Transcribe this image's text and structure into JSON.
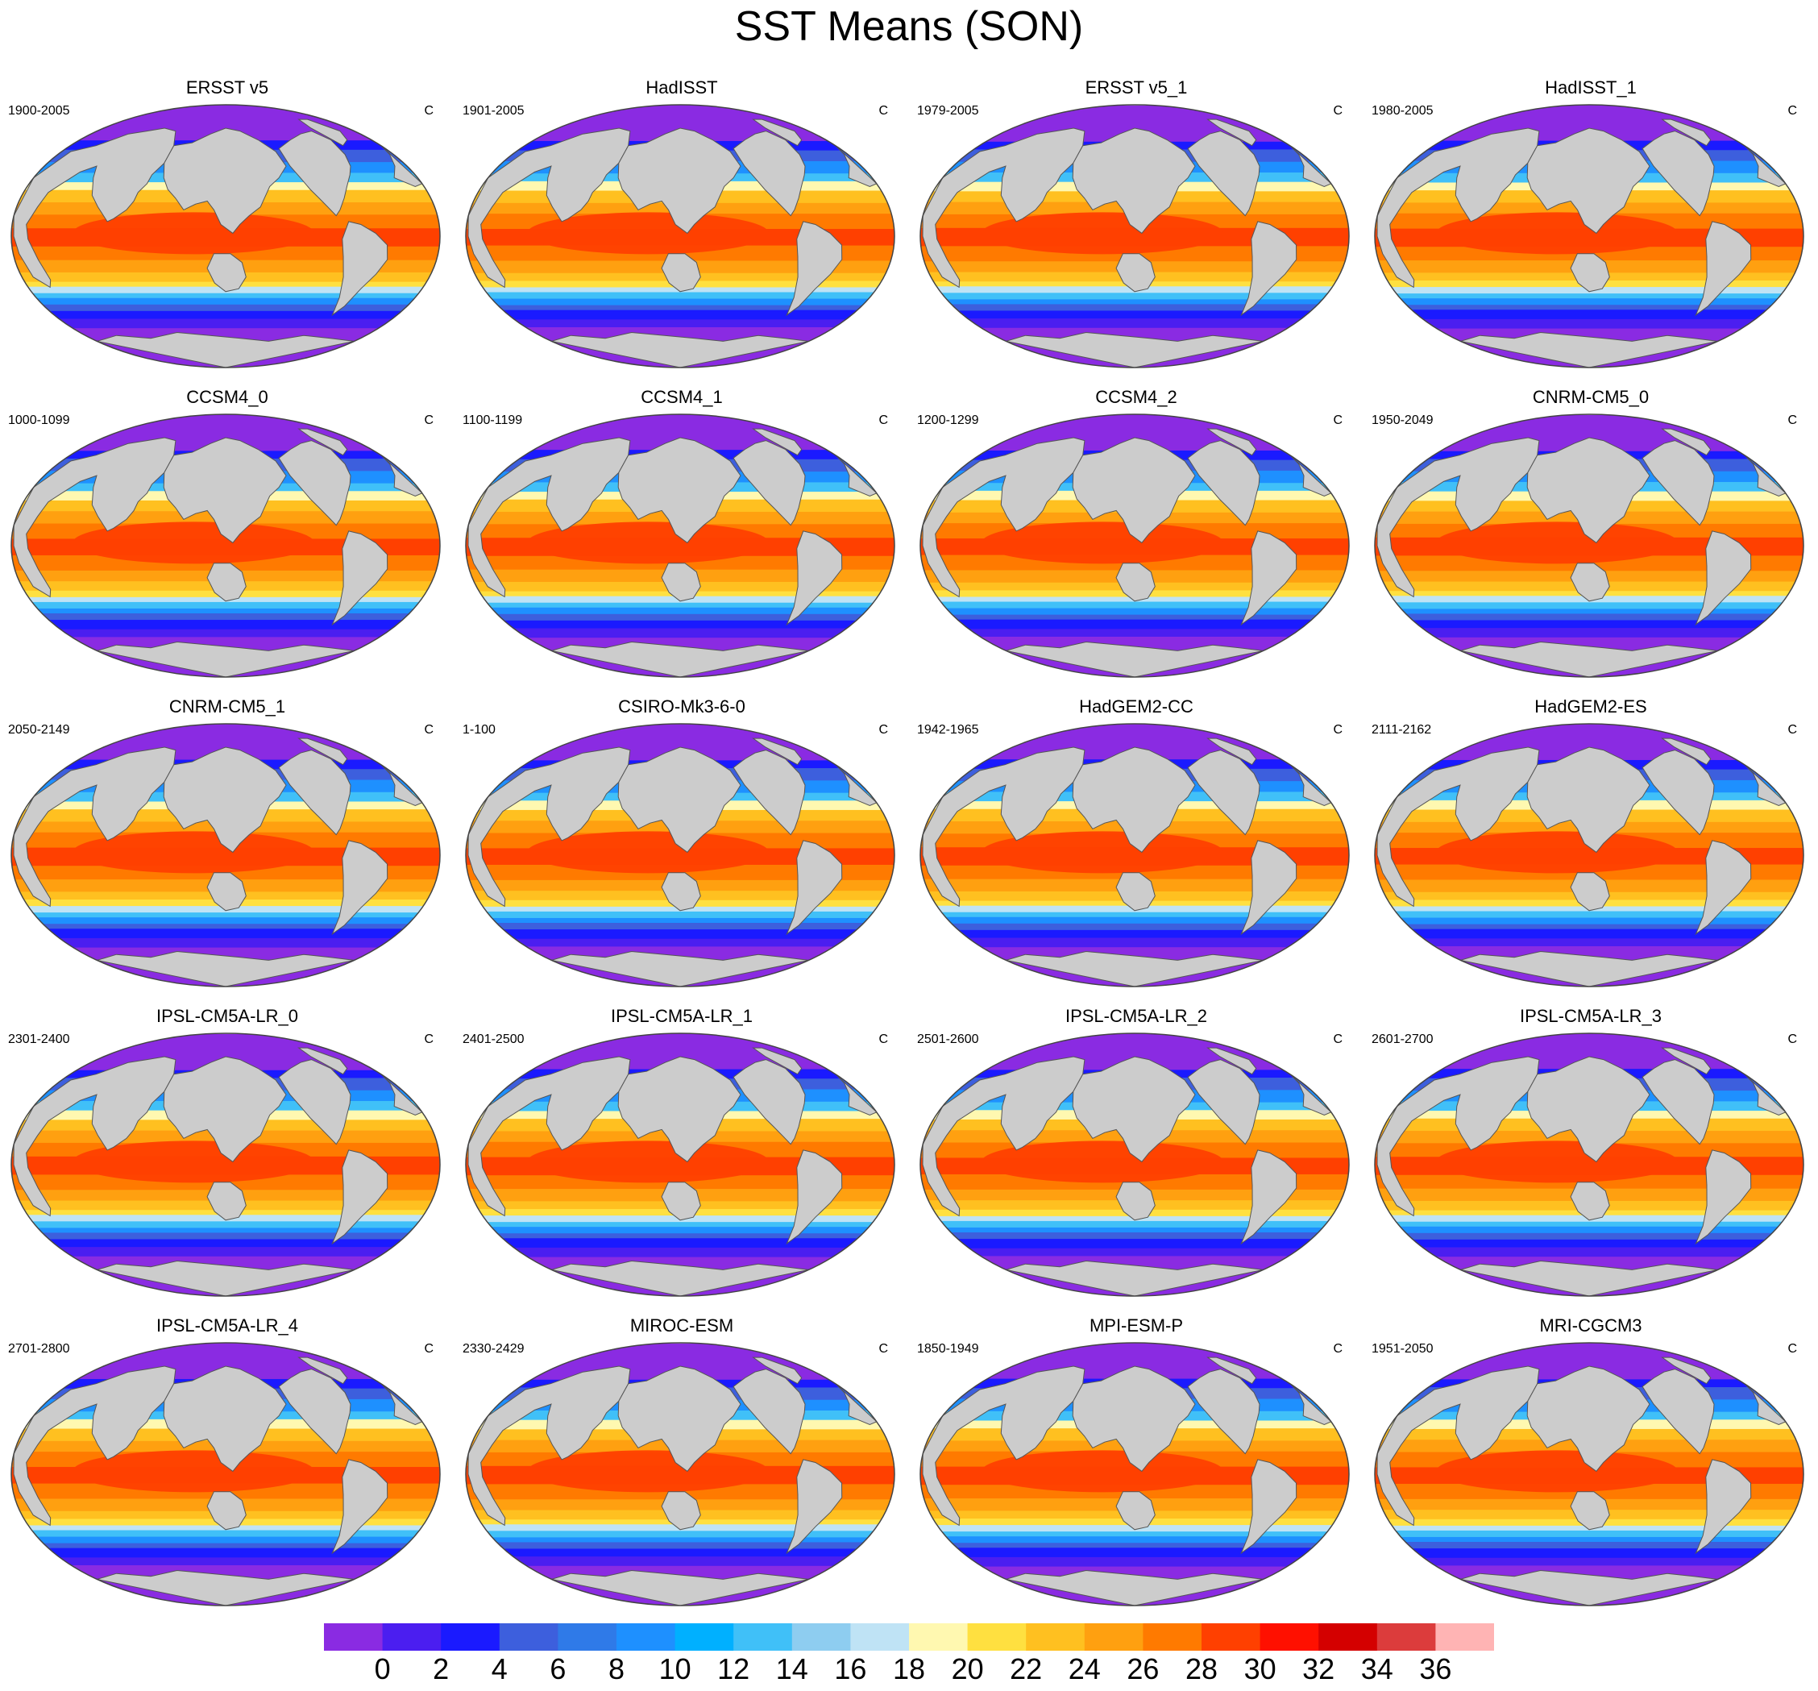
{
  "title": "SST Means (SON)",
  "units": "C",
  "panels": [
    {
      "name": "ERSST v5",
      "period": "1900-2005"
    },
    {
      "name": "HadISST",
      "period": "1901-2005"
    },
    {
      "name": "ERSST v5_1",
      "period": "1979-2005"
    },
    {
      "name": "HadISST_1",
      "period": "1980-2005"
    },
    {
      "name": "CCSM4_0",
      "period": "1000-1099"
    },
    {
      "name": "CCSM4_1",
      "period": "1100-1199"
    },
    {
      "name": "CCSM4_2",
      "period": "1200-1299"
    },
    {
      "name": "CNRM-CM5_0",
      "period": "1950-2049"
    },
    {
      "name": "CNRM-CM5_1",
      "period": "2050-2149"
    },
    {
      "name": "CSIRO-Mk3-6-0",
      "period": "1-100"
    },
    {
      "name": "HadGEM2-CC",
      "period": "1942-1965"
    },
    {
      "name": "HadGEM2-ES",
      "period": "2111-2162"
    },
    {
      "name": "IPSL-CM5A-LR_0",
      "period": "2301-2400"
    },
    {
      "name": "IPSL-CM5A-LR_1",
      "period": "2401-2500"
    },
    {
      "name": "IPSL-CM5A-LR_2",
      "period": "2501-2600"
    },
    {
      "name": "IPSL-CM5A-LR_3",
      "period": "2601-2700"
    },
    {
      "name": "IPSL-CM5A-LR_4",
      "period": "2701-2800"
    },
    {
      "name": "MIROC-ESM",
      "period": "2330-2429"
    },
    {
      "name": "MPI-ESM-P",
      "period": "1850-1949"
    },
    {
      "name": "MRI-CGCM3",
      "period": "1951-2050"
    }
  ],
  "colorbar": {
    "levels": [
      0,
      2,
      4,
      6,
      8,
      10,
      12,
      14,
      16,
      18,
      20,
      22,
      24,
      26,
      28,
      30,
      32,
      34,
      36
    ],
    "labels": [
      "0",
      "2",
      "4",
      "6",
      "8",
      "10",
      "12",
      "14",
      "16",
      "18",
      "20",
      "22",
      "24",
      "26",
      "28",
      "30",
      "32",
      "34",
      "36"
    ],
    "colors": [
      "#8a2be2",
      "#4b1ef0",
      "#1a1aff",
      "#3d5fdd",
      "#2f7ae8",
      "#1e90ff",
      "#00b0ff",
      "#40c0f8",
      "#8ecdf0",
      "#bfe3f5",
      "#fff8b0",
      "#ffe040",
      "#ffc020",
      "#ffa010",
      "#ff7a00",
      "#ff4000",
      "#ff1000",
      "#d40000",
      "#dc3c3c",
      "#ffb4b4"
    ]
  },
  "map_colors": {
    "land": "#cccccc",
    "coast": "#555555"
  }
}
